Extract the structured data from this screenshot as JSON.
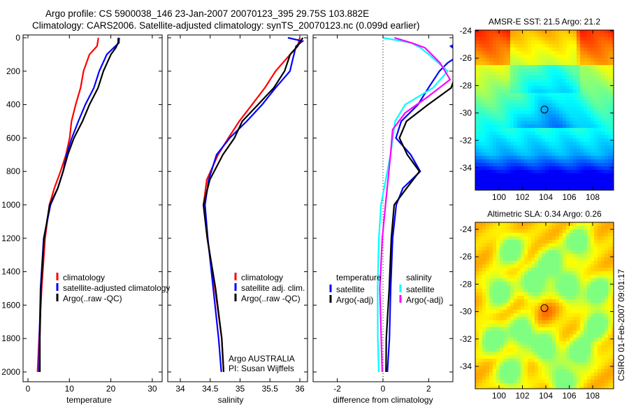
{
  "titles": {
    "line1": "Argo profile: CS 5900038_146 23-Jan-2007 20070123_395 29.75S 103.882E",
    "line2": "Climatology: CARS2006. Satellite-adjusted climatology: synTS_20070123.nc (0.099d earlier)"
  },
  "footer": "CSIRO 01-Feb-2007 09:01:17",
  "colors": {
    "climatology": "#ff0000",
    "satellite": "#0000ff",
    "argo": "#000000",
    "sal_satellite": "#00ffff",
    "sal_argo": "#ff00ff"
  },
  "chart_data": [
    {
      "type": "line",
      "id": "temperature",
      "xlabel": "temperature",
      "ylabel": "depth",
      "xlim": [
        -1,
        32
      ],
      "ylim": [
        2000,
        0
      ],
      "xticks": [
        0,
        10,
        20,
        30
      ],
      "yticks": [
        0,
        200,
        400,
        600,
        800,
        1000,
        1200,
        1400,
        1600,
        1800,
        2000
      ],
      "legend": [
        "climatology",
        "satellite-adjusted climatology",
        "Argo(..raw -QC)"
      ],
      "series": [
        {
          "name": "climatology",
          "color": "#ff0000",
          "depth": [
            0,
            50,
            100,
            200,
            300,
            400,
            500,
            600,
            700,
            800,
            900,
            1000,
            1200,
            1500,
            1800,
            2000
          ],
          "values": [
            17,
            16.5,
            15,
            13.5,
            12.5,
            11.5,
            10.7,
            10,
            9,
            8,
            6.5,
            5,
            4,
            3.3,
            2.8,
            2.5
          ]
        },
        {
          "name": "satellite-adjusted climatology",
          "color": "#0000ff",
          "depth": [
            0,
            30,
            60,
            100,
            200,
            300,
            400,
            500,
            600,
            700,
            800,
            900,
            1000,
            1200,
            1500,
            1800,
            2000
          ],
          "values": [
            22,
            21.8,
            20.5,
            19,
            17,
            16,
            14,
            12,
            10.5,
            9.5,
            8.5,
            7,
            5.5,
            4,
            3.2,
            2.8,
            2.5
          ]
        },
        {
          "name": "Argo(..raw -QC)",
          "color": "#000000",
          "depth": [
            0,
            30,
            60,
            100,
            200,
            300,
            400,
            500,
            600,
            700,
            800,
            900,
            1000,
            1200,
            1500,
            1800,
            2000
          ],
          "values": [
            21.8,
            21.6,
            21,
            20,
            18,
            17,
            15,
            13,
            11,
            9.8,
            8.5,
            7,
            5.3,
            4.1,
            3.3,
            2.9,
            2.7
          ]
        }
      ]
    },
    {
      "type": "line",
      "id": "salinity",
      "xlabel": "salinity",
      "xlim": [
        33.8,
        36.1
      ],
      "ylim": [
        2000,
        0
      ],
      "xticks": [
        34,
        34.5,
        35,
        35.5,
        36
      ],
      "xtick_labels": [
        "34",
        "34.5",
        "35",
        "35.5",
        "36"
      ],
      "legend": [
        "climatology",
        "satellite adj. clim.",
        "Argo(..raw -QC)"
      ],
      "annotation": [
        "Argo AUSTRALIA",
        "PI: Susan Wijffels"
      ],
      "series": [
        {
          "name": "climatology",
          "color": "#ff0000",
          "depth": [
            0,
            50,
            100,
            200,
            300,
            400,
            500,
            600,
            700,
            850,
            1000,
            1200,
            1500,
            1800,
            2000
          ],
          "values": [
            36.0,
            35.95,
            35.85,
            35.6,
            35.4,
            35.2,
            35.0,
            34.8,
            34.62,
            34.45,
            34.4,
            34.45,
            34.57,
            34.68,
            34.72
          ]
        },
        {
          "name": "satellite adj. clim.",
          "color": "#0000ff",
          "depth": [
            0,
            20,
            50,
            100,
            200,
            300,
            400,
            500,
            600,
            700,
            850,
            1000,
            1200,
            1500,
            1800,
            2000
          ],
          "values": [
            35.8,
            36.05,
            35.95,
            35.9,
            35.82,
            35.6,
            35.38,
            35.1,
            34.82,
            34.62,
            34.48,
            34.4,
            34.45,
            34.55,
            34.65,
            34.7
          ]
        },
        {
          "name": "Argo(..raw -QC)",
          "color": "#000000",
          "depth": [
            0,
            50,
            100,
            200,
            300,
            400,
            500,
            600,
            700,
            850,
            1000,
            1200,
            1500,
            1800,
            2000
          ],
          "values": [
            36.05,
            35.95,
            35.85,
            35.75,
            35.55,
            35.3,
            35.05,
            34.9,
            34.7,
            34.5,
            34.4,
            34.45,
            34.58,
            34.68,
            34.72
          ]
        }
      ]
    },
    {
      "type": "line",
      "id": "difference",
      "xlabel": "difference from climatology",
      "xlim": [
        -3.1,
        3.1
      ],
      "ylim": [
        2000,
        0
      ],
      "xticks": [
        -2,
        0,
        2
      ],
      "legend_temperature_title": "temperature",
      "legend_salinity_title": "salinity",
      "legend": [
        "satellite",
        "Argo(-adj)",
        "satellite",
        "Argo(-adj)"
      ],
      "series": [
        {
          "name": "temperature satellite",
          "color": "#0000ff",
          "depth": [
            0,
            20,
            50,
            100,
            150,
            200,
            300,
            400,
            500,
            600,
            700,
            800,
            900,
            1000,
            1200,
            1500,
            1800,
            2000
          ],
          "values": [
            5,
            3.5,
            3,
            3.4,
            2.8,
            2.5,
            2,
            1.5,
            0.8,
            0.6,
            1.2,
            1.6,
            0.9,
            0.6,
            0.4,
            0.3,
            0.25,
            0.2
          ]
        },
        {
          "name": "temperature Argo(-adj)",
          "color": "#000000",
          "depth": [
            0,
            20,
            50,
            100,
            200,
            300,
            400,
            500,
            600,
            700,
            800,
            900,
            1000,
            1200,
            1500,
            1800,
            2000
          ],
          "values": [
            6,
            4,
            3.5,
            3.4,
            3.2,
            3,
            2,
            1,
            0.7,
            1.1,
            1.6,
            1,
            0.5,
            0.4,
            0.3,
            0.15,
            0.1
          ]
        },
        {
          "name": "salinity satellite",
          "color": "#00ffff",
          "depth": [
            0,
            30,
            60,
            100,
            200,
            300,
            400,
            500,
            700,
            1000,
            1200,
            1500,
            1800,
            2000
          ],
          "values": [
            0,
            1.2,
            1.6,
            2,
            2.8,
            2.2,
            1.0,
            0.5,
            0.3,
            -0.1,
            -0.15,
            -0.2,
            -0.2,
            -0.2
          ]
        },
        {
          "name": "salinity Argo(-adj)",
          "color": "#ff00ff",
          "depth": [
            0,
            30,
            60,
            150,
            250,
            350,
            450,
            550,
            700,
            1000,
            1200,
            1500,
            1800,
            2000
          ],
          "values": [
            0.5,
            1.2,
            1.8,
            2.5,
            2.9,
            2,
            1,
            0.4,
            0.3,
            0.1,
            0,
            -0.1,
            -0.05,
            -0.05
          ]
        }
      ]
    },
    {
      "type": "heatmap",
      "id": "sst-map",
      "title": "AMSR-E SST: 21.5 Argo: 21.2",
      "xlim": [
        98,
        109.8
      ],
      "ylim": [
        -35.6,
        -23.9
      ],
      "xticks": [
        100,
        102,
        104,
        106,
        108
      ],
      "yticks": [
        -24,
        -26,
        -28,
        -30,
        -32,
        -34
      ],
      "argo_position": {
        "lon": 103.882,
        "lat": -29.75
      }
    },
    {
      "type": "heatmap",
      "id": "sla-map",
      "title": "Altimetric SLA: 0.34 Argo: 0.26",
      "xlim": [
        98,
        109.8
      ],
      "ylim": [
        -35.6,
        -23.5
      ],
      "xticks": [
        100,
        102,
        104,
        106,
        108
      ],
      "yticks": [
        -24,
        -26,
        -28,
        -30,
        -32,
        -34
      ],
      "argo_position": {
        "lon": 103.882,
        "lat": -29.75
      }
    }
  ]
}
